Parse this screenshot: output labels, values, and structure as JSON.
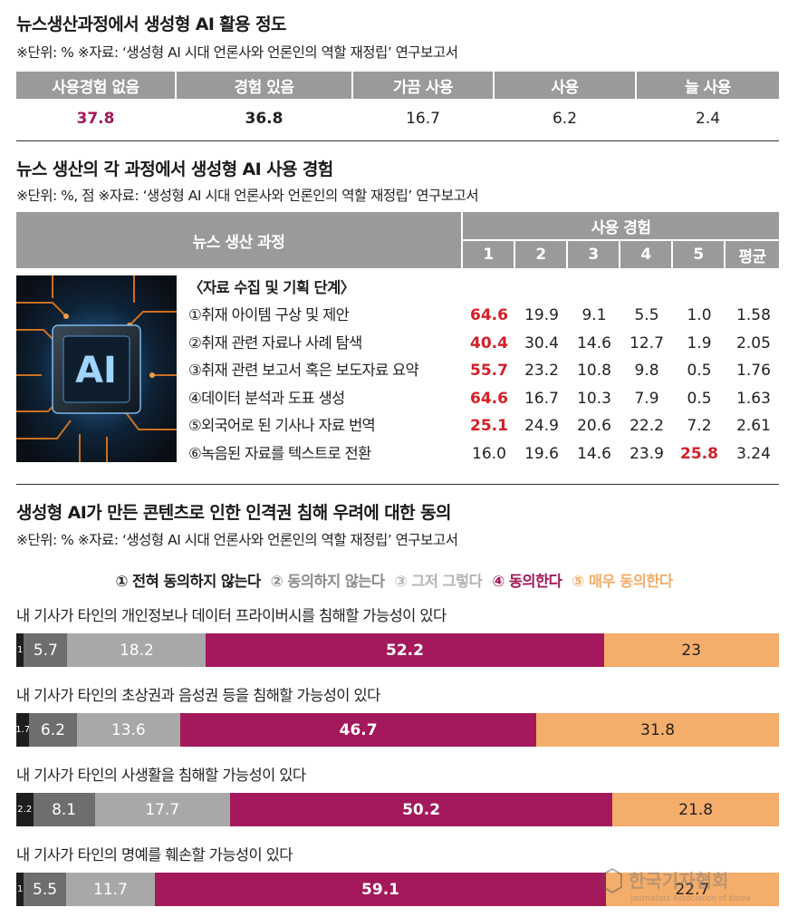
{
  "section1": {
    "title": "뉴스생산과정에서 생성형 AI 활용 정도",
    "note": "※단위: %  ※자료: ‘생성형 AI 시대 언론사와 언론인의 역할 재정립’ 연구보고서",
    "headers": [
      "사용경험 없음",
      "경험 있음",
      "가끔 사용",
      "사용",
      "늘 사용"
    ],
    "values": [
      "37.8",
      "36.8",
      "16.7",
      "6.2",
      "2.4"
    ],
    "value_colors": [
      "#a3195b",
      "#222222",
      "#222222",
      "#222222",
      "#222222"
    ]
  },
  "section2": {
    "title": "뉴스 생산의 각 과정에서 생성형 AI 사용 경험",
    "note": "※단위: %, 점  ※자료: ‘생성형 AI 시대 언론사와 언론인의 역할 재정립’ 연구보고서",
    "header_process": "뉴스 생산 과정",
    "header_experience": "사용 경험",
    "columns": [
      "1",
      "2",
      "3",
      "4",
      "5",
      "평균"
    ],
    "stage": "〈자료 수집 및 기획 단계〉",
    "image_text": "AI",
    "rows": [
      {
        "label": "①취재 아이템 구상 및 제안",
        "values": [
          "64.6",
          "19.9",
          "9.1",
          "5.5",
          "1.0",
          "1.58"
        ],
        "highlight": 0
      },
      {
        "label": "②취재 관련 자료나 사례 탐색",
        "values": [
          "40.4",
          "30.4",
          "14.6",
          "12.7",
          "1.9",
          "2.05"
        ],
        "highlight": 0
      },
      {
        "label": "③취재 관련 보고서 혹은 보도자료 요약",
        "values": [
          "55.7",
          "23.2",
          "10.8",
          "9.8",
          "0.5",
          "1.76"
        ],
        "highlight": 0
      },
      {
        "label": "④데이터 분석과 도표 생성",
        "values": [
          "64.6",
          "16.7",
          "10.3",
          "7.9",
          "0.5",
          "1.63"
        ],
        "highlight": 0
      },
      {
        "label": "⑤외국어로 된 기사나 자료 번역",
        "values": [
          "25.1",
          "24.9",
          "20.6",
          "22.2",
          "7.2",
          "2.61"
        ],
        "highlight": 0
      },
      {
        "label": "⑥녹음된 자료를 텍스트로 전환",
        "values": [
          "16.0",
          "19.6",
          "14.6",
          "23.9",
          "25.8",
          "3.24"
        ],
        "highlight": 4
      }
    ]
  },
  "section3": {
    "title": "생성형 AI가 만든 콘텐츠로 인한 인격권 침해 우려에 대한 동의",
    "note": "※단위: %  ※자료: ‘생성형 AI 시대 언론사와 언론인의 역할 재정립’ 연구보고서",
    "legend": [
      "① 전혀 동의하지 않는다",
      "② 동의하지 않는다",
      "③ 그저 그렇다",
      "④ 동의한다",
      "⑤ 매우 동의한다"
    ],
    "colors": [
      "#1e1e1e",
      "#6e6e6e",
      "#a8a8a8",
      "#a3195b",
      "#f4ad6a"
    ],
    "legend_colors": [
      "#1e1e1e",
      "#8c8c8c",
      "#b4b4b4",
      "#a3195b",
      "#f4ad6a"
    ],
    "text_colors": [
      "#ffffff",
      "#ffffff",
      "#ffffff",
      "#ffffff",
      "#222222"
    ]
  },
  "chart_data": {
    "type": "bar",
    "stacked": true,
    "orientation": "horizontal",
    "categories": [
      "내 기사가 타인의 개인정보나 데이터 프라이버시를 침해할 가능성이 있다",
      "내 기사가 타인의 초상권과 음성권 등을 침해할 가능성이 있다",
      "내 기사가 타인의 사생활을 침해할 가능성이 있다",
      "내 기사가 타인의 명예를 훼손할 가능성이 있다"
    ],
    "series": [
      {
        "name": "① 전혀 동의하지 않는다",
        "values": [
          1,
          1.7,
          2.2,
          1
        ]
      },
      {
        "name": "② 동의하지 않는다",
        "values": [
          5.7,
          6.2,
          8.1,
          5.5
        ]
      },
      {
        "name": "③ 그저 그렇다",
        "values": [
          18.2,
          13.6,
          17.7,
          11.7
        ]
      },
      {
        "name": "④ 동의한다",
        "values": [
          52.2,
          46.7,
          50.2,
          59.1
        ]
      },
      {
        "name": "⑤ 매우 동의한다",
        "values": [
          23,
          31.8,
          21.8,
          22.7
        ]
      }
    ],
    "labels": [
      [
        "1",
        "5.7",
        "18.2",
        "52.2",
        "23"
      ],
      [
        "1.7",
        "6.2",
        "13.6",
        "46.7",
        "31.8"
      ],
      [
        "2.2",
        "8.1",
        "17.7",
        "50.2",
        "21.8"
      ],
      [
        "1",
        "5.5",
        "11.7",
        "59.1",
        "22.7"
      ]
    ]
  },
  "watermark": {
    "name": "한국기자협회",
    "subtitle": "Journalists Association of Korea"
  }
}
